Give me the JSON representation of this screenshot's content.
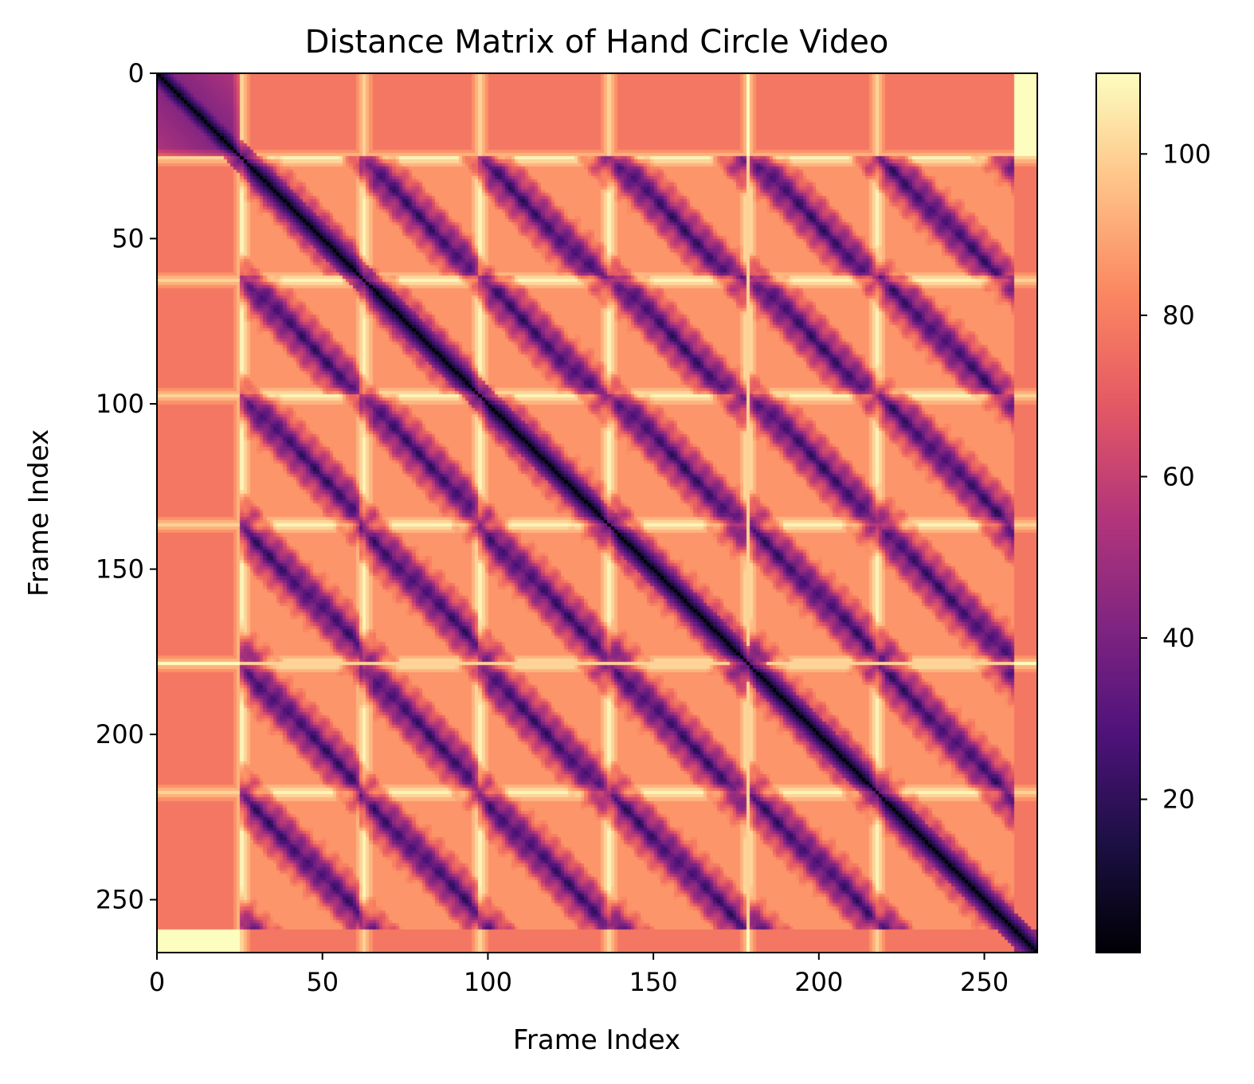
{
  "chart_data": {
    "type": "heatmap",
    "title": "Distance Matrix of Hand Circle Video",
    "xlabel": "Frame Index",
    "ylabel": "Frame Index",
    "n_frames": 266,
    "xlim": [
      0,
      266
    ],
    "ylim": [
      266,
      0
    ],
    "x_ticks": [
      0,
      50,
      100,
      150,
      200,
      250
    ],
    "y_ticks": [
      0,
      50,
      100,
      150,
      200,
      250
    ],
    "colormap": "magma",
    "colorbar": {
      "range": [
        1,
        110
      ],
      "ticks": [
        20,
        40,
        60,
        80,
        100
      ]
    },
    "description_values": {
      "diagonal_value": 1,
      "cycle_starts": [
        25,
        61,
        97,
        137,
        179,
        218
      ],
      "cycle_length_approx": 39,
      "bright_rows_cols": [
        25,
        62,
        97,
        136,
        178,
        217
      ],
      "typical_off_diagonal": 78,
      "max_value": 110
    },
    "grid": false,
    "legend": "none"
  },
  "colors": {
    "magma_stops": [
      "#000004",
      "#1c1044",
      "#4f127b",
      "#812581",
      "#b5367a",
      "#e55964",
      "#fb8761",
      "#fec287",
      "#fcfdbf"
    ]
  }
}
